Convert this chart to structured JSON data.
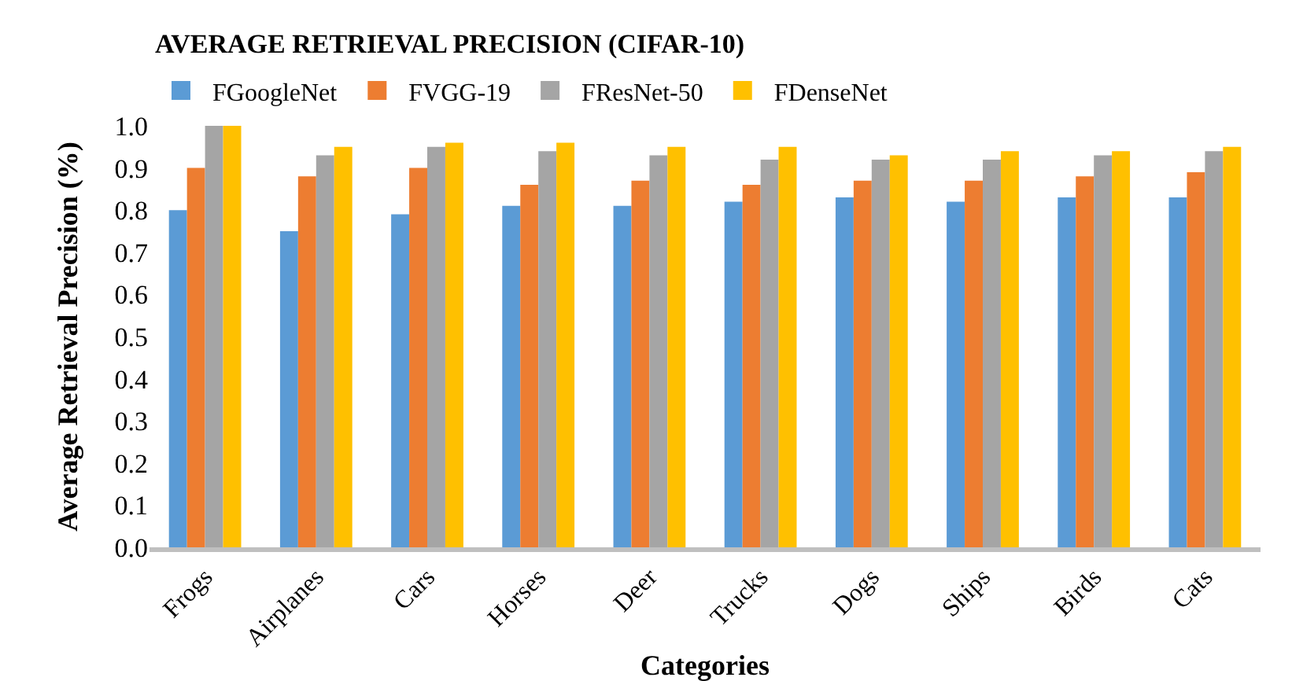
{
  "chart_data": {
    "type": "bar",
    "title": "AVERAGE RETRIEVAL PRECISION (CIFAR-10)",
    "xlabel": "Categories",
    "ylabel": "Average Retrieval Precision (%)",
    "categories": [
      "Frogs",
      "Airplanes",
      "Cars",
      "Horses",
      "Deer",
      "Trucks",
      "Dogs",
      "Ships",
      "Birds",
      "Cats"
    ],
    "series": [
      {
        "name": "FGoogleNet",
        "color": "#5b9bd5",
        "values": [
          0.8,
          0.75,
          0.79,
          0.81,
          0.81,
          0.82,
          0.83,
          0.82,
          0.83,
          0.83
        ]
      },
      {
        "name": "FVGG-19",
        "color": "#ed7d31",
        "values": [
          0.9,
          0.88,
          0.9,
          0.86,
          0.87,
          0.86,
          0.87,
          0.87,
          0.88,
          0.89
        ]
      },
      {
        "name": "FResNet-50",
        "color": "#a5a5a5",
        "values": [
          1.0,
          0.93,
          0.95,
          0.94,
          0.93,
          0.92,
          0.92,
          0.92,
          0.93,
          0.94
        ]
      },
      {
        "name": "FDenseNet",
        "color": "#ffc000",
        "values": [
          1.0,
          0.95,
          0.96,
          0.96,
          0.95,
          0.95,
          0.93,
          0.94,
          0.94,
          0.95
        ]
      }
    ],
    "ylim": [
      0,
      1.0
    ],
    "yticks": [
      {
        "value": 0,
        "label": "0.0"
      },
      {
        "value": 0.1,
        "label": "0.1"
      },
      {
        "value": 0.2,
        "label": "0.2"
      },
      {
        "value": 0.3,
        "label": "0.3"
      },
      {
        "value": 0.4,
        "label": "0.4"
      },
      {
        "value": 0.5,
        "label": "0.5"
      },
      {
        "value": 0.6,
        "label": "0.6"
      },
      {
        "value": 0.7,
        "label": "0.7"
      },
      {
        "value": 0.8,
        "label": "0.8"
      },
      {
        "value": 0.9,
        "label": "0.9"
      },
      {
        "value": 1,
        "label": "1.0"
      }
    ],
    "grid": false,
    "legend": "top left"
  }
}
